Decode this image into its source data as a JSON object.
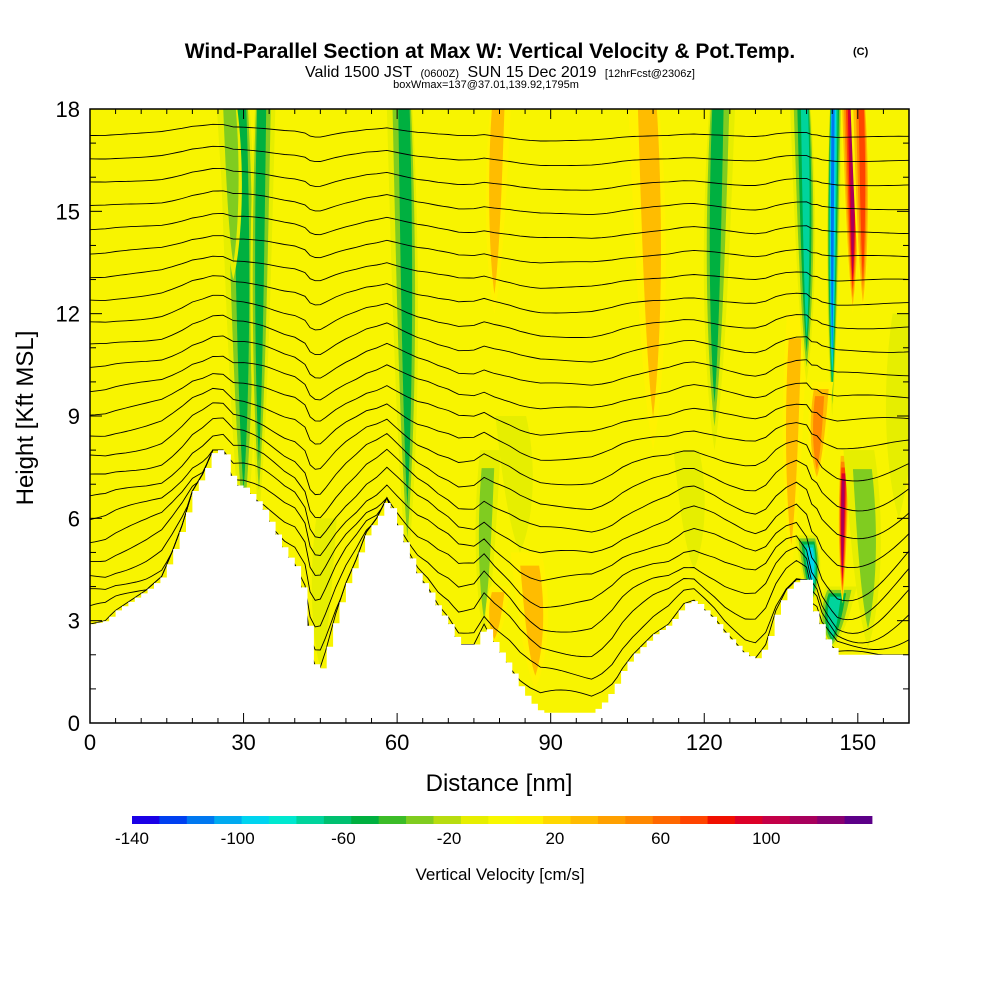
{
  "title": {
    "main": "Wind-Parallel Section at Max W: Vertical Velocity & Pot.Temp.",
    "copyright": "(C)",
    "valid_prefix": "Valid 1500 JST",
    "valid_utc": "(0600Z)",
    "valid_date": "SUN 15 Dec 2019",
    "forecast": "[12hrFcst@2306z]",
    "boxwmax": "boxWmax=137@37.01,139.92,1795m"
  },
  "chart_data": {
    "type": "heatmap",
    "xlabel": "Distance [nm]",
    "ylabel": "Height [Kft MSL]",
    "xlim": [
      0,
      160
    ],
    "ylim": [
      0,
      18
    ],
    "x_ticks": [
      0,
      30,
      60,
      90,
      120,
      150
    ],
    "y_ticks": [
      0,
      3,
      6,
      9,
      12,
      15,
      18
    ],
    "colorbar": {
      "label": "Vertical Velocity [cm/s]",
      "range": [
        -140,
        140
      ],
      "tick_values": [
        -140,
        -100,
        -60,
        -20,
        20,
        60,
        100
      ],
      "colors": [
        "#1a00e6",
        "#0040f0",
        "#0078f0",
        "#00aaf0",
        "#00d4f0",
        "#00e8d0",
        "#00d49c",
        "#00c070",
        "#00b040",
        "#3cbc28",
        "#80cc20",
        "#b8dc10",
        "#e6ee00",
        "#f8f800",
        "#fff200",
        "#ffd800",
        "#ffbc00",
        "#ffa000",
        "#ff8800",
        "#ff6800",
        "#ff4400",
        "#f01000",
        "#dc0028",
        "#c40048",
        "#a8005c",
        "#880070",
        "#5c0088"
      ]
    },
    "terrain_profile_kft": [
      [
        0,
        2.9
      ],
      [
        3,
        3.0
      ],
      [
        5,
        3.3
      ],
      [
        8,
        3.6
      ],
      [
        11,
        3.9
      ],
      [
        14,
        4.3
      ],
      [
        16,
        5.0
      ],
      [
        18,
        5.8
      ],
      [
        20,
        6.8
      ],
      [
        22,
        7.3
      ],
      [
        24,
        8.0
      ],
      [
        26,
        8.0
      ],
      [
        28,
        7.0
      ],
      [
        30,
        6.9
      ],
      [
        32,
        6.6
      ],
      [
        34,
        6.2
      ],
      [
        36,
        5.6
      ],
      [
        38,
        5.0
      ],
      [
        40,
        4.6
      ],
      [
        42,
        3.6
      ],
      [
        43,
        2.1
      ],
      [
        44,
        1.6
      ],
      [
        45,
        1.6
      ],
      [
        46,
        2.1
      ],
      [
        48,
        3.2
      ],
      [
        50,
        4.1
      ],
      [
        52,
        4.8
      ],
      [
        54,
        5.6
      ],
      [
        56,
        6.0
      ],
      [
        58,
        6.6
      ],
      [
        60,
        5.8
      ],
      [
        62,
        5.0
      ],
      [
        64,
        4.3
      ],
      [
        66,
        3.9
      ],
      [
        68,
        3.3
      ],
      [
        70,
        2.9
      ],
      [
        72,
        2.3
      ],
      [
        75,
        2.3
      ],
      [
        77,
        2.9
      ],
      [
        79,
        2.3
      ],
      [
        82,
        1.6
      ],
      [
        84,
        1.0
      ],
      [
        86,
        0.6
      ],
      [
        88,
        0.3
      ],
      [
        90,
        0.3
      ],
      [
        93,
        0.3
      ],
      [
        95,
        0.3
      ],
      [
        98,
        0.3
      ],
      [
        100,
        0.6
      ],
      [
        102,
        1.0
      ],
      [
        104,
        1.6
      ],
      [
        106,
        2.0
      ],
      [
        108,
        2.3
      ],
      [
        110,
        2.6
      ],
      [
        113,
        2.9
      ],
      [
        116,
        3.5
      ],
      [
        118,
        3.6
      ],
      [
        120,
        3.3
      ],
      [
        122,
        3.0
      ],
      [
        124,
        2.6
      ],
      [
        126,
        2.3
      ],
      [
        128,
        2.0
      ],
      [
        130,
        1.9
      ],
      [
        132,
        2.3
      ],
      [
        134,
        3.3
      ],
      [
        136,
        3.9
      ],
      [
        138,
        4.2
      ],
      [
        140,
        4.2
      ],
      [
        141,
        3.3
      ],
      [
        142,
        3.2
      ],
      [
        143,
        2.6
      ],
      [
        145,
        2.2
      ],
      [
        146,
        2.0
      ],
      [
        148,
        2.0
      ],
      [
        155,
        2.0
      ],
      [
        160,
        2.0
      ]
    ],
    "vertical_velocity_features": [
      {
        "x": 30,
        "y_from": 5.0,
        "y_to": 18,
        "w": -60,
        "half_width_nm": 3
      },
      {
        "x": 33,
        "y_from": 6.0,
        "y_to": 18,
        "w": -50,
        "half_width_nm": 2
      },
      {
        "x": 28,
        "y_from": 13,
        "y_to": 18,
        "w": -30,
        "half_width_nm": 2
      },
      {
        "x": 45,
        "y_from": 1.6,
        "y_to": 6,
        "w": -25,
        "half_width_nm": 2
      },
      {
        "x": 62,
        "y_from": 4.5,
        "y_to": 18,
        "w": -60,
        "half_width_nm": 2.5
      },
      {
        "x": 77,
        "y_from": 2.5,
        "y_to": 8,
        "w": -30,
        "half_width_nm": 2
      },
      {
        "x": 84,
        "y_from": 5.0,
        "y_to": 9,
        "w": -25,
        "half_width_nm": 3
      },
      {
        "x": 79,
        "y_from": 2.3,
        "y_to": 4,
        "w": 40,
        "half_width_nm": 2
      },
      {
        "x": 87,
        "y_from": 1.0,
        "y_to": 5,
        "w": 40,
        "half_width_nm": 3
      },
      {
        "x": 79,
        "y_from": 12,
        "y_to": 18,
        "w": 30,
        "half_width_nm": 2
      },
      {
        "x": 110,
        "y_from": 8,
        "y_to": 18,
        "w": 40,
        "half_width_nm": 3
      },
      {
        "x": 122,
        "y_from": 8,
        "y_to": 18,
        "w": -50,
        "half_width_nm": 2.5
      },
      {
        "x": 118,
        "y_from": 4.5,
        "y_to": 8,
        "w": -25,
        "half_width_nm": 2.5
      },
      {
        "x": 137,
        "y_from": 4.5,
        "y_to": 12,
        "w": 30,
        "half_width_nm": 2
      },
      {
        "x": 140,
        "y_from": 10,
        "y_to": 18,
        "w": -70,
        "half_width_nm": 2
      },
      {
        "x": 145,
        "y_from": 9,
        "y_to": 18,
        "w": -120,
        "half_width_nm": 1.2
      },
      {
        "x": 141,
        "y_from": 3.5,
        "y_to": 5.5,
        "w": -90,
        "half_width_nm": 2
      },
      {
        "x": 145,
        "y_from": 2.2,
        "y_to": 4,
        "w": -70,
        "half_width_nm": 3
      },
      {
        "x": 149,
        "y_from": 12,
        "y_to": 18,
        "w": 120,
        "half_width_nm": 1.5
      },
      {
        "x": 147,
        "y_from": 3.5,
        "y_to": 8,
        "w": 110,
        "half_width_nm": 1.0
      },
      {
        "x": 151,
        "y_from": 12,
        "y_to": 18,
        "w": 80,
        "half_width_nm": 1.5
      },
      {
        "x": 142,
        "y_from": 7,
        "y_to": 10,
        "w": 50,
        "half_width_nm": 2
      },
      {
        "x": 152,
        "y_from": 2.2,
        "y_to": 8,
        "w": -35,
        "half_width_nm": 3
      },
      {
        "x": 158,
        "y_from": 6,
        "y_to": 12,
        "w": -20,
        "half_width_nm": 3
      }
    ]
  }
}
